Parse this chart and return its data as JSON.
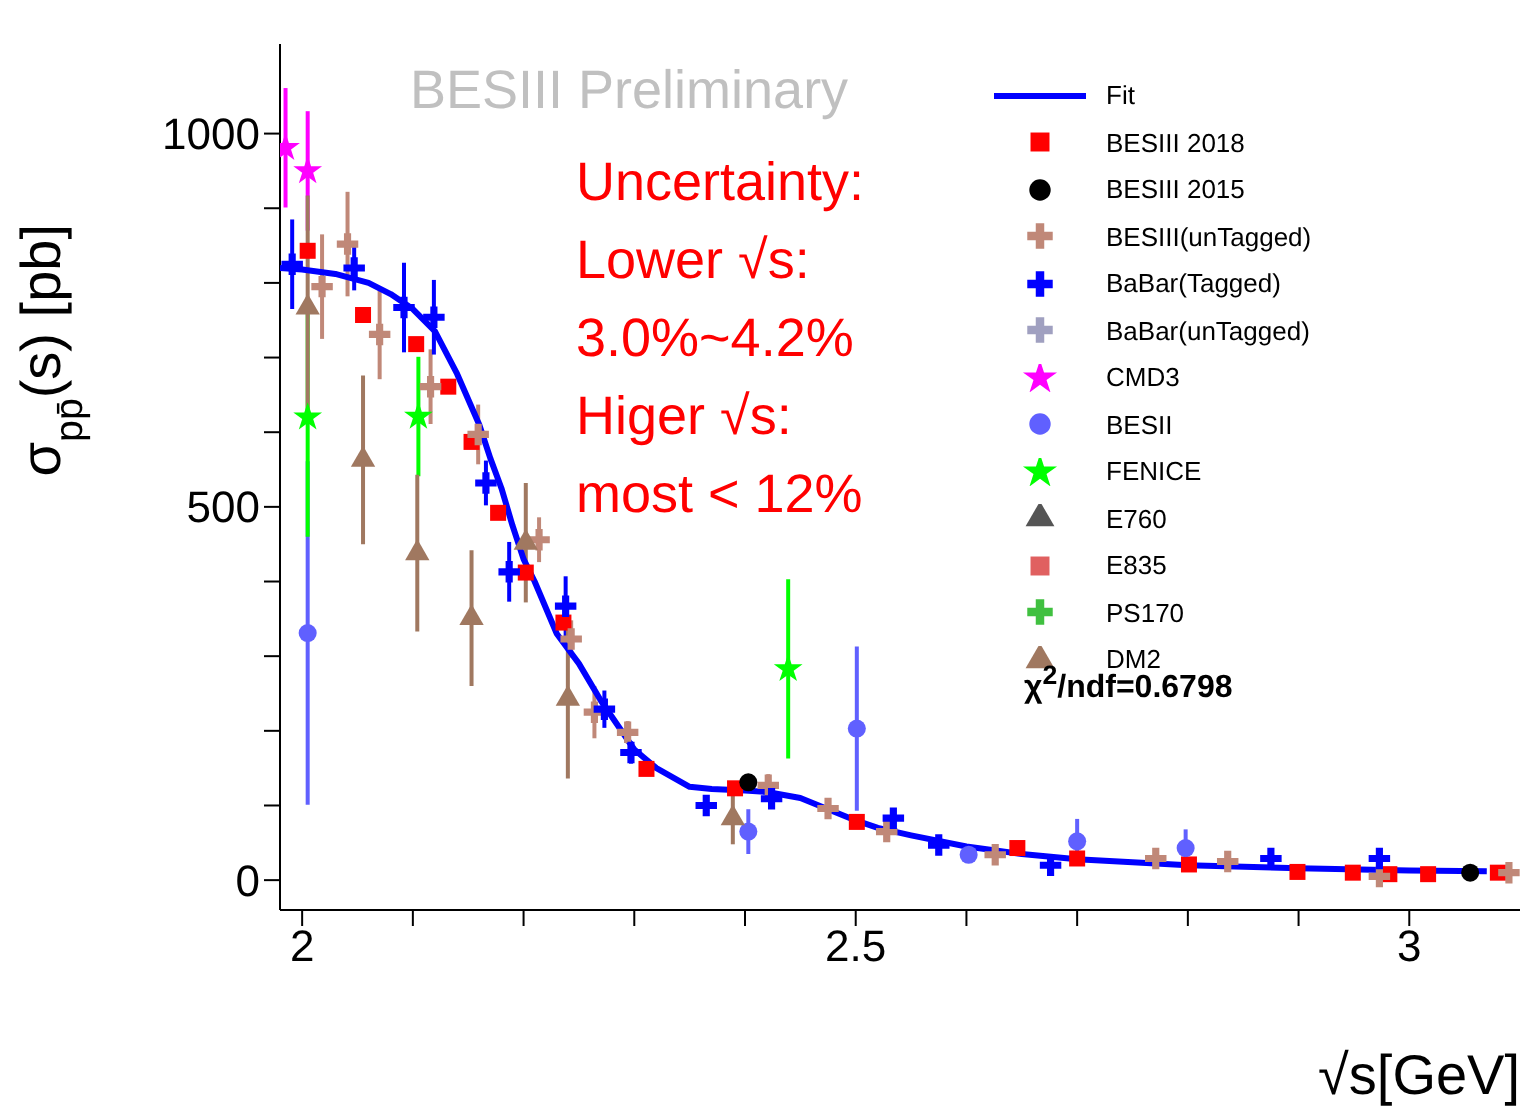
{
  "chart_data": {
    "type": "scatter",
    "xlabel": "√s[GeV]",
    "ylabel": "σ$_{pp̄}$(s) [pb]",
    "xlim": [
      1.98,
      3.1
    ],
    "ylim": [
      -40,
      1120
    ],
    "xticks": [
      2,
      {
        "value": 2.1,
        "label": null
      },
      {
        "value": 2.2,
        "label": null
      },
      {
        "value": 2.3,
        "label": null
      },
      {
        "value": 2.4,
        "label": null
      },
      2.5,
      {
        "value": 2.6,
        "label": null
      },
      {
        "value": 2.7,
        "label": null
      },
      {
        "value": 2.8,
        "label": null
      },
      {
        "value": 2.9,
        "label": null
      },
      3
    ],
    "yticks": [
      0,
      {
        "value": 100,
        "label": null
      },
      {
        "value": 200,
        "label": null
      },
      {
        "value": 300,
        "label": null
      },
      {
        "value": 400,
        "label": null
      },
      500,
      {
        "value": 600,
        "label": null
      },
      {
        "value": 700,
        "label": null
      },
      {
        "value": 800,
        "label": null
      },
      {
        "value": 900,
        "label": null
      },
      1000
    ],
    "legend": "top right",
    "annotations": [
      "BESIII Preliminary",
      "Uncertainty:",
      "Lower √s:",
      "3.0%~4.2%",
      "Higer √s:",
      "most < 12%",
      "χ$^{2}$/ndf=0.6798"
    ],
    "series": [
      {
        "name": "Fit",
        "type": "line",
        "marker": "none",
        "color": "#0000ff",
        "x": [
          1.98,
          2.0,
          2.03,
          2.06,
          2.08,
          2.1,
          2.12,
          2.14,
          2.16,
          2.17,
          2.18,
          2.19,
          2.2,
          2.21,
          2.23,
          2.25,
          2.27,
          2.3,
          2.32,
          2.35,
          2.37,
          2.4,
          2.42,
          2.45,
          2.47,
          2.5,
          2.52,
          2.55,
          2.6,
          2.65,
          2.7,
          2.8,
          2.9,
          3.0,
          3.07
        ],
        "values": [
          820,
          818,
          812,
          800,
          785,
          765,
          735,
          678,
          610,
          565,
          525,
          475,
          430,
          400,
          330,
          290,
          240,
          175,
          150,
          125,
          122,
          120,
          118,
          110,
          98,
          80,
          70,
          60,
          45,
          35,
          28,
          20,
          16,
          13,
          12
        ]
      },
      {
        "name": "BESIII 2018",
        "marker": "square",
        "color": "#ff0000",
        "x": [
          2.005,
          2.055,
          2.103,
          2.132,
          2.153,
          2.177,
          2.202,
          2.236,
          2.311,
          2.391,
          2.501,
          2.646,
          2.7,
          2.801,
          2.899,
          2.949,
          2.982,
          3.017,
          3.08
        ],
        "values": [
          843,
          757,
          718,
          661,
          587,
          492,
          412,
          345,
          149,
          123,
          78,
          43,
          29,
          21,
          11,
          10,
          8,
          8,
          10
        ]
      },
      {
        "name": "BESIII 2015",
        "marker": "circle",
        "color": "#000000",
        "x": [
          2.403,
          3.055
        ],
        "values": [
          131,
          10
        ]
      },
      {
        "name": "BESIII(unTagged)",
        "marker": "cross",
        "color": "#c08878",
        "x": [
          2.018,
          2.041,
          2.07,
          2.116,
          2.159,
          2.214,
          2.243,
          2.264,
          2.294,
          2.421,
          2.475,
          2.528,
          2.626,
          2.771,
          2.836,
          2.973,
          3.09
        ],
        "values": [
          795,
          852,
          731,
          661,
          597,
          456,
          323,
          225,
          198,
          127,
          96,
          65,
          34,
          29,
          25,
          5,
          10
        ],
        "errors": [
          70,
          70,
          60,
          50,
          40,
          30,
          25,
          35,
          15,
          15,
          12,
          10,
          8,
          8,
          8,
          6,
          6
        ]
      },
      {
        "name": "BaBar(Tagged)",
        "marker": "cross",
        "color": "#0000ff",
        "x": [
          1.991,
          2.047,
          2.092,
          2.119,
          2.166,
          2.187,
          2.238,
          2.273,
          2.297,
          2.365,
          2.424,
          2.534,
          2.575,
          2.676,
          2.875,
          2.973
        ],
        "values": [
          825,
          820,
          767,
          754,
          532,
          413,
          367,
          229,
          171,
          100,
          109,
          83,
          47,
          20,
          29,
          29
        ],
        "errors": [
          60,
          30,
          60,
          50,
          30,
          40,
          40,
          25,
          15,
          12,
          12,
          10,
          10,
          10,
          10,
          10
        ]
      },
      {
        "name": "BaBar(unTagged)",
        "marker": "cross",
        "color": "#a0a0c0"
      },
      {
        "name": "CMD3",
        "marker": "star",
        "color": "#ff00ff",
        "x": [
          1.985,
          2.005
        ],
        "values": [
          981,
          950
        ],
        "errors": [
          80,
          80
        ]
      },
      {
        "name": "BESII",
        "marker": "circle",
        "color": "#6060ff",
        "x": [
          2.005,
          2.403,
          2.501,
          2.602,
          2.7,
          2.798
        ],
        "values": [
          331,
          65,
          203,
          34,
          52,
          43
        ],
        "errors": [
          230,
          30,
          110,
          10,
          30,
          25
        ]
      },
      {
        "name": "FENICE",
        "marker": "star",
        "color": "#00ff00",
        "x": [
          2.005,
          2.105,
          2.439
        ],
        "values": [
          620,
          621,
          283
        ],
        "errors": [
          160,
          80,
          120
        ]
      },
      {
        "name": "E760",
        "marker": "triangle",
        "color": "#555555"
      },
      {
        "name": "E835",
        "marker": "square",
        "color": "#e06060"
      },
      {
        "name": "PS170",
        "marker": "cross",
        "color": "#40c040"
      },
      {
        "name": "DM2",
        "marker": "triangle",
        "color": "#a07860",
        "x": [
          2.005,
          2.055,
          2.104,
          2.153,
          2.202,
          2.24,
          2.389
        ],
        "values": [
          767,
          563,
          438,
          351,
          452,
          243,
          83
        ],
        "errors": [
          150,
          113,
          105,
          91,
          80,
          107,
          35
        ]
      }
    ]
  }
}
